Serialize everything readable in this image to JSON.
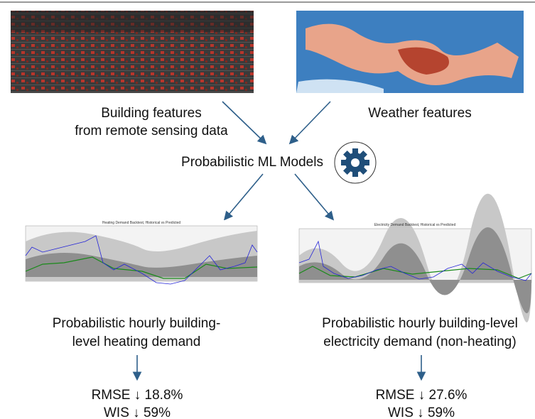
{
  "inputs": {
    "building": {
      "line1": "Building features",
      "line2": "from remote sensing data"
    },
    "weather": {
      "label": "Weather features"
    }
  },
  "model": {
    "label": "Probabilistic ML Models"
  },
  "outputs": [
    {
      "chart_title": "Heating Demand Backtest, Historical vs Predicted",
      "line1": "Probabilistic hourly building-",
      "line2": "level heating demand",
      "metric1": "RMSE ↓ 18.8%",
      "metric2": "WIS ↓ 59%"
    },
    {
      "chart_title": "Electricity Demand Backtest, Historical vs Predicted",
      "line1": "Probabilistic hourly building-level",
      "line2": "electricity demand (non-heating)",
      "metric1": "RMSE ↓ 27.6%",
      "metric2": "WIS ↓ 59%"
    }
  ]
}
